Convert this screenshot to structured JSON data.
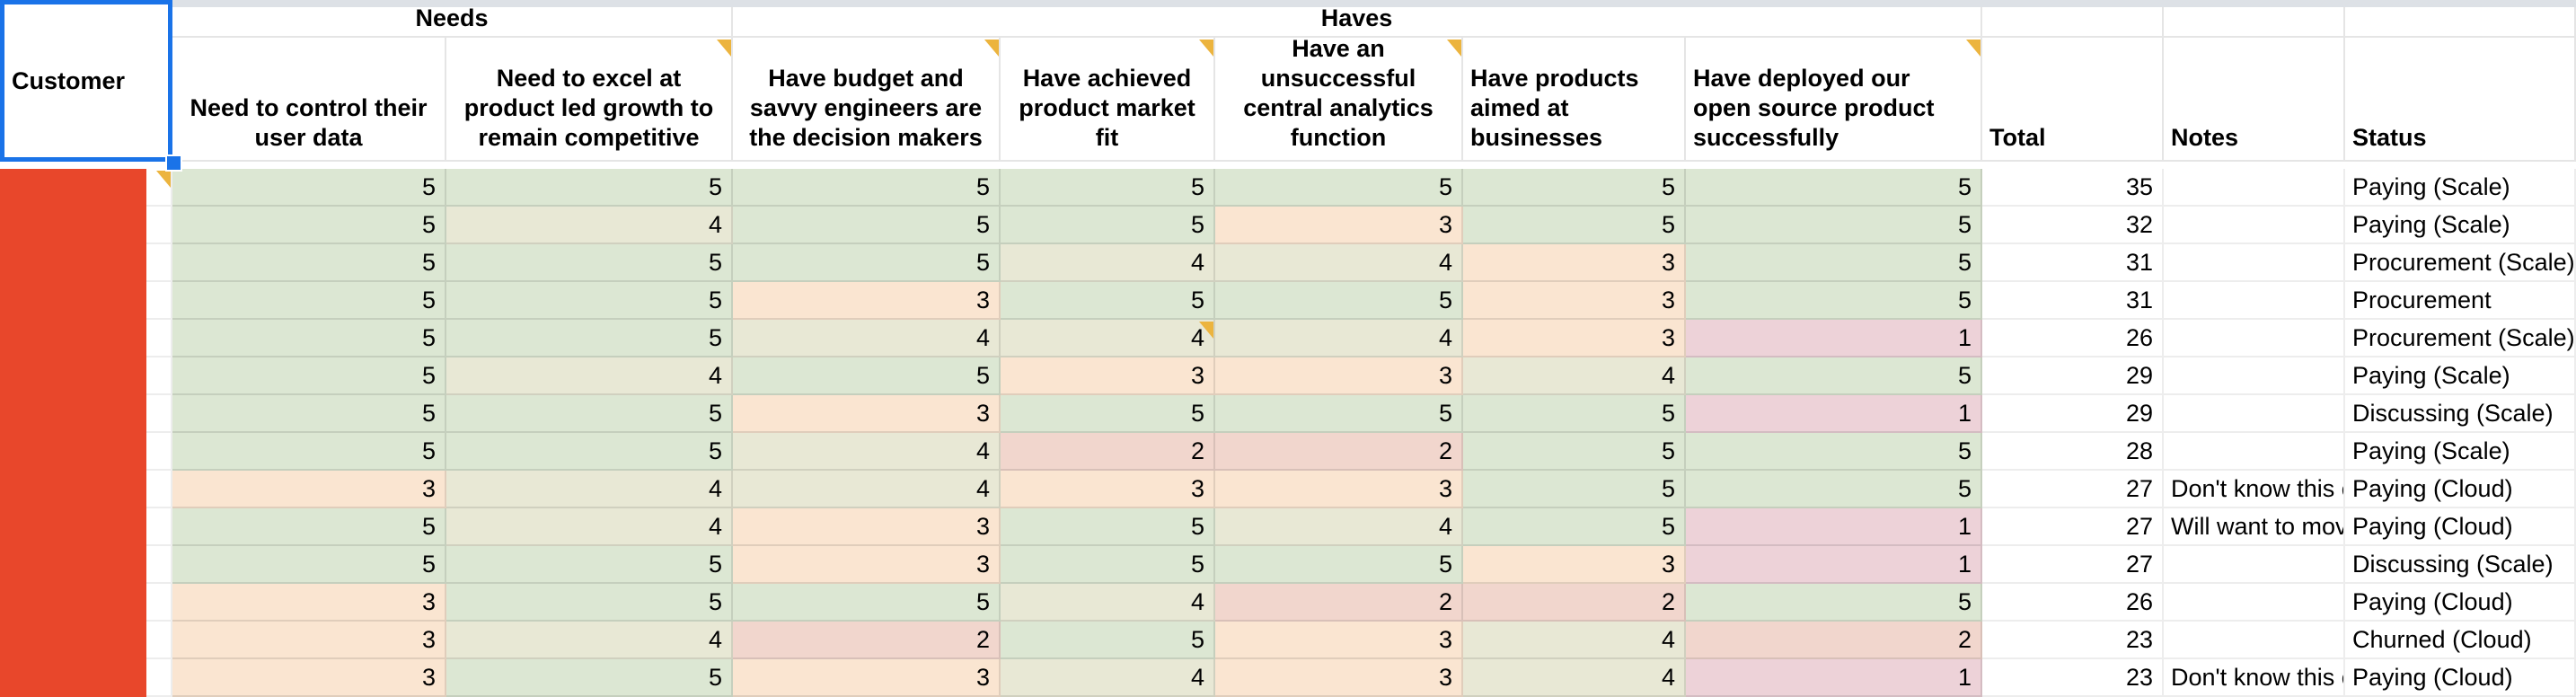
{
  "sheet": {
    "corner_label": "Customer",
    "groups": [
      {
        "label": "Needs"
      },
      {
        "label": "Haves"
      }
    ],
    "criteria_columns": [
      {
        "label": "Need to control their user data",
        "align": "center",
        "has_comment": false
      },
      {
        "label": "Need to excel at product led growth to remain competitive",
        "align": "center",
        "has_comment": true
      },
      {
        "label": "Have budget and savvy engineers are the decision makers",
        "align": "center",
        "has_comment": true
      },
      {
        "label": "Have achieved product market fit",
        "align": "center",
        "has_comment": true
      },
      {
        "label": "Have an unsuccessful central analytics function",
        "align": "center",
        "has_comment": true
      },
      {
        "label": "Have products aimed at businesses",
        "align": "left",
        "has_comment": false
      },
      {
        "label": "Have deployed our open source product successfully",
        "align": "left",
        "has_comment": true
      }
    ],
    "summary_columns": [
      {
        "label": "Total"
      },
      {
        "label": "Notes"
      },
      {
        "label": "Status"
      }
    ],
    "rows": [
      {
        "scores": [
          5,
          5,
          5,
          5,
          5,
          5,
          5
        ],
        "total": 35,
        "note": "",
        "status": "Paying (Scale)"
      },
      {
        "scores": [
          5,
          4,
          5,
          5,
          3,
          5,
          5
        ],
        "total": 32,
        "note": "",
        "status": "Paying (Scale)"
      },
      {
        "scores": [
          5,
          5,
          5,
          4,
          4,
          3,
          5
        ],
        "total": 31,
        "note": "",
        "status": "Procurement (Scale)"
      },
      {
        "scores": [
          5,
          5,
          3,
          5,
          5,
          3,
          5
        ],
        "total": 31,
        "note": "",
        "status": "Procurement"
      },
      {
        "scores": [
          5,
          5,
          4,
          4,
          4,
          3,
          1
        ],
        "total": 26,
        "note": "",
        "status": "Procurement (Scale)"
      },
      {
        "scores": [
          5,
          4,
          5,
          3,
          3,
          4,
          5
        ],
        "total": 29,
        "note": "",
        "status": "Paying (Scale)"
      },
      {
        "scores": [
          5,
          5,
          3,
          5,
          5,
          5,
          1
        ],
        "total": 29,
        "note": "",
        "status": "Discussing (Scale)"
      },
      {
        "scores": [
          5,
          5,
          4,
          2,
          2,
          5,
          5
        ],
        "total": 28,
        "note": "",
        "status": "Paying (Scale)"
      },
      {
        "scores": [
          3,
          4,
          4,
          3,
          3,
          5,
          5
        ],
        "total": 27,
        "note": "Don't know this c",
        "status": "Paying (Cloud)"
      },
      {
        "scores": [
          5,
          4,
          3,
          5,
          4,
          5,
          1
        ],
        "total": 27,
        "note": "Will want to mov",
        "status": "Paying (Cloud)"
      },
      {
        "scores": [
          5,
          5,
          3,
          5,
          5,
          3,
          1
        ],
        "total": 27,
        "note": "",
        "status": "Discussing (Scale)"
      },
      {
        "scores": [
          3,
          5,
          5,
          4,
          2,
          2,
          5
        ],
        "total": 26,
        "note": "",
        "status": "Paying (Cloud)"
      },
      {
        "scores": [
          3,
          4,
          2,
          5,
          3,
          4,
          2
        ],
        "total": 23,
        "note": "",
        "status": "Churned (Cloud)"
      },
      {
        "scores": [
          3,
          5,
          3,
          4,
          3,
          4,
          1
        ],
        "total": 23,
        "note": "Don't know this c",
        "status": "Paying (Cloud)"
      }
    ],
    "cell_comments": [
      {
        "row": 1,
        "target": "customer"
      },
      {
        "row": 5,
        "target": "criteria",
        "col": 4
      }
    ],
    "score_colors": {
      "1": "#edd2d8",
      "2": "#f1d6cd",
      "3": "#fae5d1",
      "4": "#e8e8d5",
      "5": "#dce7d3"
    },
    "colors": {
      "selection_blue": "#1a73e8",
      "redaction_red": "#e8472b",
      "comment_marker_amber": "#ecb43e",
      "freeze_divider_grey": "#dde1e6"
    }
  }
}
